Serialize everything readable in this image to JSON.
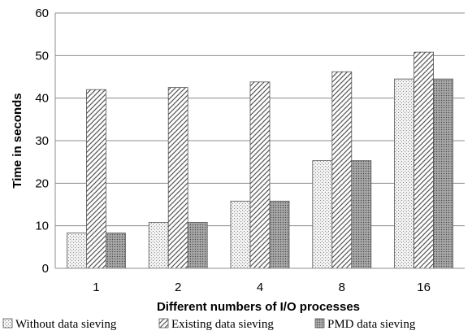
{
  "chart_data": {
    "type": "bar",
    "categories": [
      "1",
      "2",
      "4",
      "8",
      "16"
    ],
    "series": [
      {
        "name": "Without data sieving",
        "values": [
          8.3,
          10.8,
          15.8,
          25.3,
          44.5
        ],
        "pattern": "dots"
      },
      {
        "name": "Existing data sieving",
        "values": [
          42.0,
          42.5,
          43.8,
          46.2,
          50.8
        ],
        "pattern": "hatch"
      },
      {
        "name": "PMD data sieving",
        "values": [
          8.3,
          10.8,
          15.8,
          25.3,
          44.5
        ],
        "pattern": "dense"
      }
    ],
    "xlabel": "Different numbers of I/O processes",
    "ylabel": "Time in seconds",
    "ylim": [
      0,
      60
    ],
    "yticks": [
      0,
      10,
      20,
      30,
      40,
      50,
      60
    ],
    "grid": true,
    "legend_position": "bottom"
  }
}
